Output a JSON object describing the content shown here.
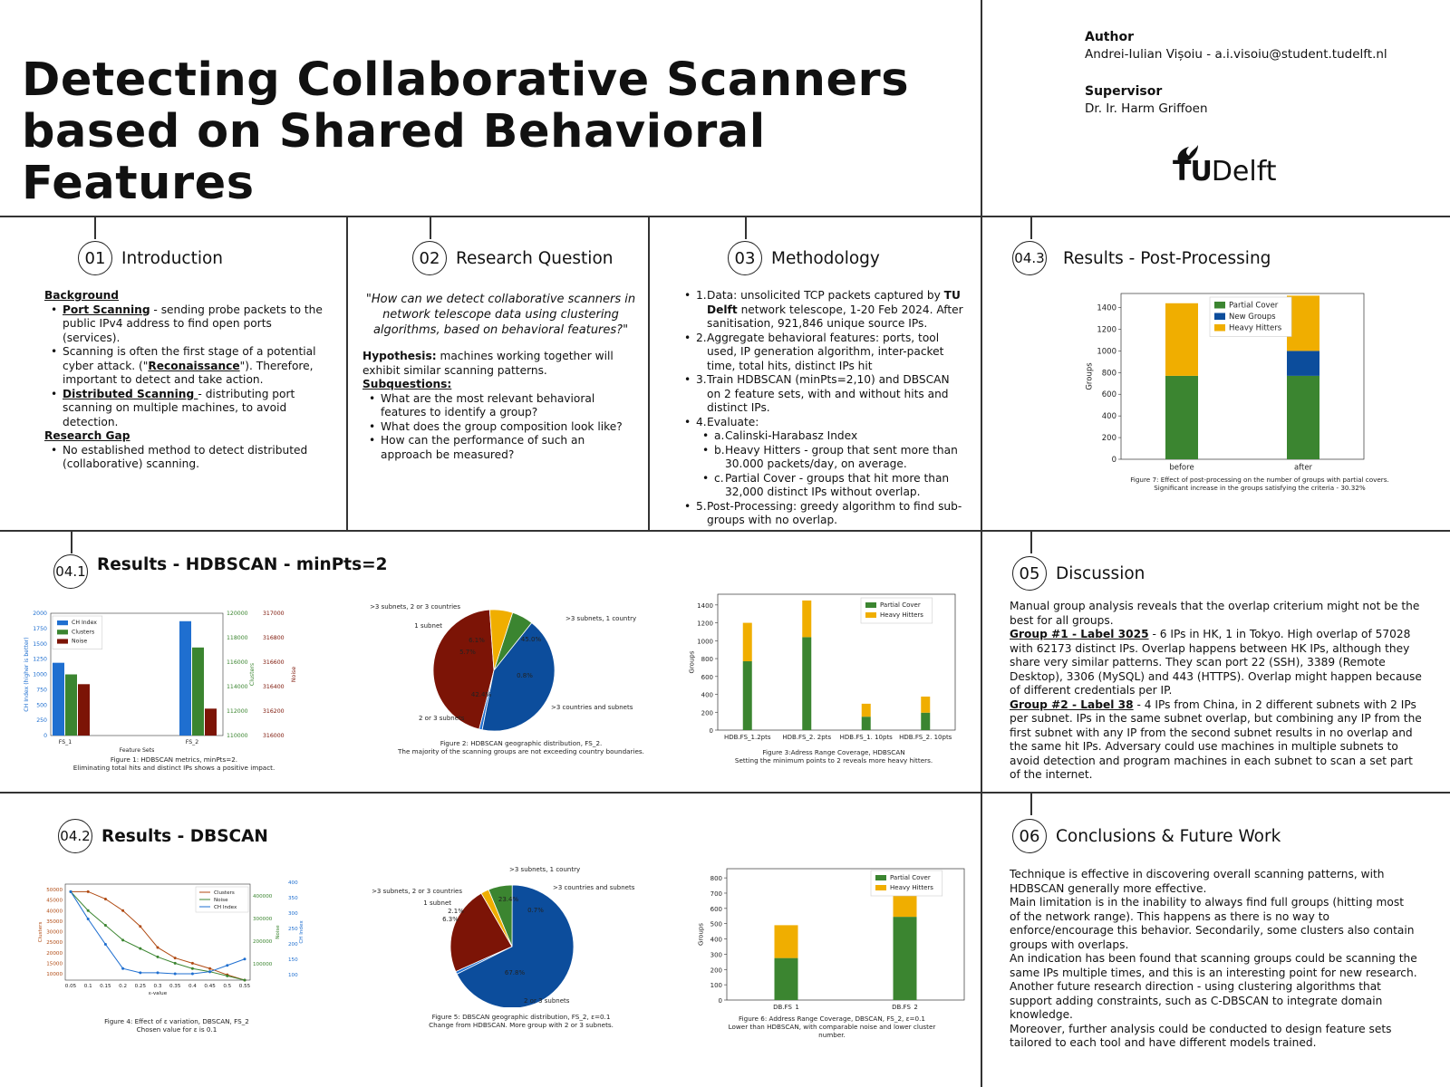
{
  "header": {
    "title_line1": "Detecting Collaborative Scanners",
    "title_line2": "based on Shared Behavioral Features",
    "author_label": "Author",
    "author": "Andrei-Iulian Vișoiu - a.i.visoiu@student.tudelft.nl",
    "supervisor_label": "Supervisor",
    "supervisor": "Dr. Ir. Harm Griffoen",
    "logo_tu": "TU",
    "logo_delft": "Delft"
  },
  "sections": {
    "intro": {
      "num": "01",
      "name": "Introduction",
      "background_h": "Background",
      "b1_u": "Port Scanning",
      "b1_t": " - sending probe packets to the public IPv4 address to find open ports (services).",
      "b2_a": "Scanning is often the first stage of a potential cyber attack. (\"",
      "b2_u": "Reconaissance",
      "b2_b": "\"). Therefore, important to detect and take action.",
      "b3_u": "Distributed Scanning ",
      "b3_t": "- distributing port scanning on multiple machines, to avoid detection.",
      "gap_h": "Research Gap",
      "g1": "No established method to detect distributed (collaborative) scanning."
    },
    "rq": {
      "num": "02",
      "name": "Research Question",
      "quote": "\"How can we detect collaborative scanners in network telescope data using clustering algorithms, based on behavioral features?\"",
      "hyp_b": "Hypothesis:",
      "hyp_t": " machines working together will exhibit similar scanning patterns.",
      "subq_h": "Subquestions:",
      "q1": "What are the most relevant behavioral features to identify a group?",
      "q2": "What does the group composition look like?",
      "q3": "How can the performance of such an approach be measured?"
    },
    "method": {
      "num": "03",
      "name": "Methodology",
      "i1_a": "Data: unsolicited TCP packets captured by ",
      "i1_b": "TU Delft",
      "i1_c": " network telescope, 1-20 Feb 2024. After sanitisation, 921,846 unique source IPs.",
      "i2": "Aggregate behavioral features: ports, tool used, IP generation algorithm, inter-packet time, total hits, distinct IPs hit",
      "i3": "Train HDBSCAN (minPts=2,10) and DBSCAN on 2 feature sets, with and without hits and distinct IPs.",
      "i4": "Evaluate:",
      "a": "Calinski-Harabasz Index",
      "b": "Heavy Hitters - group that sent more than 30.000 packets/day, on average.",
      "c": "Partial Cover - groups that hit more than 32,000 distinct IPs without overlap.",
      "i5": "Post-Processing: greedy algorithm to find sub-groups with no overlap."
    },
    "post": {
      "num": "04.3",
      "name": "Results - Post-Processing"
    },
    "hdb": {
      "num": "04.1",
      "name": "Results - HDBSCAN - minPts=2"
    },
    "dbs": {
      "num": "04.2",
      "name": "Results - DBSCAN"
    },
    "disc": {
      "num": "05",
      "name": "Discussion",
      "p1": "Manual group analysis reveals that the overlap criterium might not be the best for all groups.",
      "g1_u": "Group #1 - Label 3025",
      "g1_t": " - 6 IPs in HK, 1 in Tokyo. High overlap of 57028 with 62173 distinct IPs. Overlap happens between HK IPs, although they share very similar patterns. They scan port 22 (SSH), 3389 (Remote Desktop), 3306 (MySQL) and 443 (HTTPS). Overlap might happen because of different credentials per IP.",
      "g2_u": "Group #2 - Label 38",
      "g2_t": " - 4 IPs from China, in 2 different subnets with 2 IPs per subnet. IPs in the same subnet overlap, but combining any IP from the first subnet with any IP from the second subnet results in no overlap and the same hit IPs. Adversary could use machines in multiple subnets to avoid detection and program machines in each subnet to scan a set part of the internet."
    },
    "concl": {
      "num": "06",
      "name": "Conclusions &  Future Work",
      "p1": "Technique is effective in discovering overall scanning patterns, with HDBSCAN generally more effective.",
      "p2": "Main limitation is in the inability to always find full groups (hitting most of the network range). This happens as there is no way to enforce/encourage this behavior. Secondarily, some clusters also contain groups with overlaps.",
      "p3": "An indication has been found that scanning groups could be scanning the same IPs multiple times, and this is an interesting point for new research.",
      "p4": "Another future research direction - using clustering algorithms that support adding constraints, such as C-DBSCAN to integrate domain knowledge.",
      "p5": "Moreover, further analysis could be conducted to design feature sets tailored to each tool and have different models trained."
    }
  },
  "colors": {
    "green": "#3b8530",
    "blue": "#0c4d9c",
    "yellow": "#f0ae00",
    "darkred": "#7c1406",
    "cblue": "#1f6fd0",
    "orange": "#b04a12"
  },
  "chart_data": [
    {
      "id": "fig7",
      "type": "bar",
      "categories": [
        "before",
        "after"
      ],
      "series": [
        {
          "name": "Partial Cover",
          "values": [
            770,
            770
          ]
        },
        {
          "name": "New Groups",
          "values": [
            0,
            230
          ]
        },
        {
          "name": "Heavy Hitters",
          "values": [
            670,
            510
          ]
        }
      ],
      "ylabel": "Groups",
      "yticks": [
        0,
        200,
        400,
        600,
        800,
        1000,
        1200,
        1400
      ],
      "ylim": [
        0,
        1530
      ],
      "caption1": "Figure 7: Effect of post-processing on the number of groups with partial covers.",
      "caption2": "Significant increase in the groups satisfying the criteria - 30.32%"
    },
    {
      "id": "fig1",
      "type": "bar",
      "categories": [
        "FS_1",
        "FS_2"
      ],
      "series": [
        {
          "name": "CH Index",
          "values": [
            1190,
            1870
          ]
        },
        {
          "name": "Clusters",
          "values": [
            115000,
            117200
          ]
        },
        {
          "name": "Noise",
          "values": [
            316420,
            316220
          ]
        }
      ],
      "xlabel": "Feature Sets",
      "ylabel_left": "CH Index (higher is better)",
      "ylabel_mid": "Clusters",
      "ylabel_right": "Noise",
      "yticks_left": [
        "0",
        "250",
        "500",
        "750",
        "1000",
        "1250",
        "1500",
        "1750",
        "2000"
      ],
      "yticks_mid": [
        "110000",
        "112000",
        "114000",
        "116000",
        "118000",
        "120000"
      ],
      "yticks_right": [
        "316000",
        "316200",
        "316400",
        "316600",
        "316800",
        "317000"
      ],
      "caption1": "Figure 1: HDBSCAN metrics, minPts=2.",
      "caption2": "Eliminating total hits and distinct IPs shows a positive impact."
    },
    {
      "id": "fig2",
      "type": "pie",
      "labels": [
        ">3 subnets, 1 country",
        ">3 countries and subnets",
        "2 or 3 subnets",
        "1 subnet",
        ">3 subnets, 2 or 3 countries"
      ],
      "values": [
        45.0,
        0.8,
        42.4,
        5.7,
        6.1
      ],
      "pct_labels": [
        "45.0%",
        "0.8%",
        "42.4%",
        "5.7%",
        "6.1%"
      ],
      "caption1": "Figure 2: HDBSCAN geographic distribution, FS_2.",
      "caption2": "The majority of the scanning groups are not exceeding country boundaries."
    },
    {
      "id": "fig3",
      "type": "bar",
      "categories": [
        "HDB.FS_1.2pts",
        "HDB.FS_2. 2pts",
        "HDB.FS_1. 10pts",
        "HDB.FS_2. 10pts"
      ],
      "series": [
        {
          "name": "Partial Cover",
          "values": [
            770,
            1040,
            150,
            195
          ]
        },
        {
          "name": "Heavy Hitters",
          "values": [
            430,
            410,
            145,
            180
          ]
        }
      ],
      "ylabel": "Groups",
      "yticks": [
        0,
        200,
        400,
        600,
        800,
        1000,
        1200,
        1400
      ],
      "ylim": [
        0,
        1520
      ],
      "caption1": "Figure 3:Adress Range Coverage, HDBSCAN",
      "caption2": "Setting the minimum points to 2 reveals more heavy hitters."
    },
    {
      "id": "fig4",
      "type": "line",
      "x": [
        0.05,
        0.1,
        0.15,
        0.2,
        0.25,
        0.3,
        0.35,
        0.4,
        0.45,
        0.5,
        0.55
      ],
      "xticks": [
        "0.05",
        "0.1",
        "0.15",
        "0.2",
        "0.25",
        "0.3",
        "0.35",
        "0.4",
        "0.45",
        "0.5",
        "0.55"
      ],
      "series": [
        {
          "name": "Clusters",
          "values": [
            49000,
            49000,
            45500,
            40000,
            32500,
            22500,
            17500,
            15000,
            12500,
            9500,
            7000
          ]
        },
        {
          "name": "Noise",
          "values": [
            49000,
            40000,
            33000,
            26000,
            22000,
            18000,
            15000,
            12500,
            11000,
            9000,
            7000
          ]
        },
        {
          "name": "CH Index",
          "values": [
            49000,
            36000,
            24000,
            12500,
            10500,
            10500,
            10000,
            10000,
            11000,
            14000,
            17000
          ]
        }
      ],
      "xlabel": "ε-value",
      "ylabel_left": "Clusters",
      "ylabel_mid": "Noise",
      "ylabel_right": "CH Index",
      "yticks_left": [
        "10000",
        "15000",
        "20000",
        "25000",
        "30000",
        "35000",
        "40000",
        "45000",
        "50000"
      ],
      "yticks_mid": [
        "100000",
        "200000",
        "300000",
        "400000"
      ],
      "yticks_right": [
        "100",
        "150",
        "200",
        "250",
        "300",
        "350",
        "400"
      ],
      "caption1": "Figure 4: Effect of ε variation, DBSCAN, FS_2",
      "caption2": "Chosen value for ε is 0.1"
    },
    {
      "id": "fig5",
      "type": "pie",
      "labels": [
        ">3 subnets, 1 country",
        ">3 countries and subnets",
        "2 or 3 subnets",
        "1 subnet",
        ">3 subnets, 2 or 3 countries"
      ],
      "values": [
        23.4,
        0.7,
        67.8,
        6.3,
        2.1
      ],
      "pct_labels": [
        "23.4%",
        "0.7%",
        "67.8%",
        "6.3%",
        "2.1%"
      ],
      "caption1": "Figure 5: DBSCAN geographic distribution, FS_2, ε=0.1",
      "caption2": "Change from HDBSCAN. More group with 2 or 3 subnets."
    },
    {
      "id": "fig6",
      "type": "bar",
      "categories": [
        "DB.FS_1",
        "DB.FS_2"
      ],
      "series": [
        {
          "name": "Partial Cover",
          "values": [
            275,
            545
          ]
        },
        {
          "name": "Heavy Hitters",
          "values": [
            215,
            300
          ]
        }
      ],
      "ylabel": "Groups",
      "yticks": [
        0,
        100,
        200,
        300,
        400,
        500,
        600,
        700,
        800
      ],
      "ylim": [
        0,
        860
      ],
      "caption1": "Figure 6: Address Range Coverage, DBSCAN, FS_2, ε=0.1",
      "caption2": "Lower than HDBSCAN, with comparable noise and lower cluster number."
    }
  ]
}
